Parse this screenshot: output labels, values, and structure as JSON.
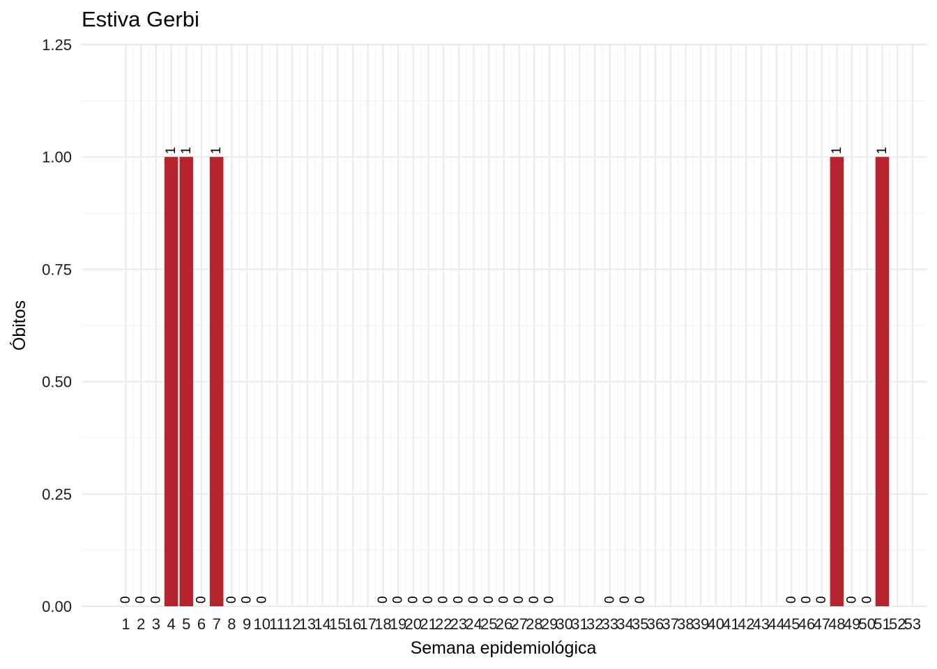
{
  "chart_data": {
    "type": "bar",
    "title": "Estiva Gerbi",
    "xlabel": "Semana epidemiológica",
    "ylabel": "Óbitos",
    "ylim": [
      0,
      1.25
    ],
    "y_ticks": [
      "0.00",
      "0.25",
      "0.50",
      "0.75",
      "1.00",
      "1.25"
    ],
    "y_tick_values": [
      0,
      0.25,
      0.5,
      0.75,
      1.0,
      1.25
    ],
    "categories": [
      "1",
      "2",
      "3",
      "4",
      "5",
      "6",
      "7",
      "8",
      "9",
      "10",
      "11",
      "12",
      "13",
      "14",
      "15",
      "16",
      "17",
      "18",
      "19",
      "20",
      "21",
      "22",
      "23",
      "24",
      "25",
      "26",
      "27",
      "28",
      "29",
      "30",
      "31",
      "32",
      "33",
      "34",
      "35",
      "36",
      "37",
      "38",
      "39",
      "40",
      "41",
      "42",
      "43",
      "44",
      "45",
      "46",
      "47",
      "48",
      "49",
      "50",
      "51",
      "52",
      "53"
    ],
    "values": [
      0,
      0,
      0,
      1,
      1,
      0,
      1,
      0,
      0,
      0,
      null,
      null,
      null,
      null,
      null,
      null,
      null,
      0,
      0,
      0,
      0,
      0,
      0,
      0,
      0,
      0,
      0,
      0,
      0,
      null,
      null,
      null,
      0,
      0,
      0,
      null,
      null,
      null,
      null,
      null,
      null,
      null,
      null,
      null,
      0,
      0,
      0,
      1,
      0,
      0,
      1,
      null,
      null
    ],
    "bar_color": "#b5232d",
    "grid": true,
    "legend": "none"
  }
}
